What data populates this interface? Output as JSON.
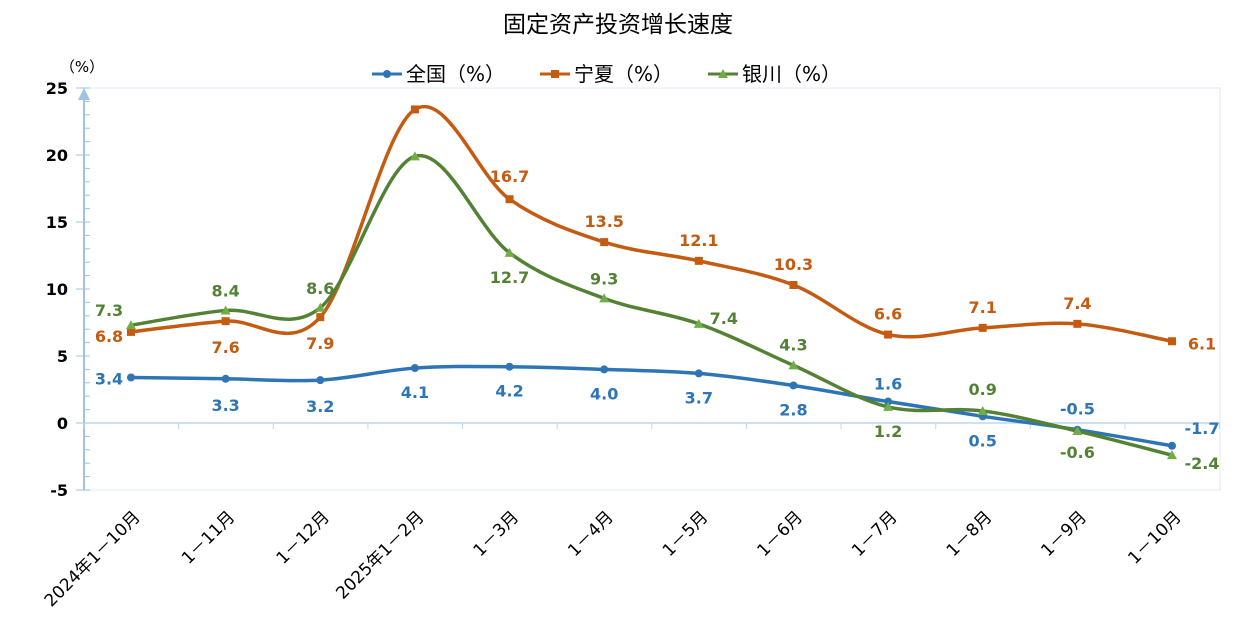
{
  "chart_data": {
    "type": "line",
    "title": "固定资产投资增长速度",
    "ylabel": "（%）",
    "ylim": [
      -5,
      25
    ],
    "yticks": [
      -5,
      0,
      5,
      10,
      15,
      20,
      25
    ],
    "grid": false,
    "legend_position": "top",
    "categories": [
      "2024年1－10月",
      "1－11月",
      "1－12月",
      "2025年1－2月",
      "1－3月",
      "1－4月",
      "1－5月",
      "1－6月",
      "1－7月",
      "1－8月",
      "1－9月",
      "1－10月"
    ],
    "series": [
      {
        "name": "全国（%）",
        "color": "#2E75B6",
        "marker": "circle",
        "values": [
          3.4,
          3.3,
          3.2,
          4.1,
          4.2,
          4.0,
          3.7,
          2.8,
          1.6,
          0.5,
          -0.5,
          -1.7
        ],
        "labels": [
          "3.4",
          "3.3",
          "3.2",
          "4.1",
          "4.2",
          "4.0",
          "3.7",
          "2.8",
          "1.6",
          "0.5",
          "-0.5",
          "-1.7"
        ]
      },
      {
        "name": "宁夏（%）",
        "color": "#C55A11",
        "marker": "square",
        "values": [
          6.8,
          7.6,
          7.9,
          23.4,
          16.7,
          13.5,
          12.1,
          10.3,
          6.6,
          7.1,
          7.4,
          6.1
        ],
        "labels": [
          "6.8",
          "7.6",
          "7.9",
          "",
          "16.7",
          "13.5",
          "12.1",
          "10.3",
          "6.6",
          "7.1",
          "7.4",
          "6.1"
        ]
      },
      {
        "name": "银川（%）",
        "color": "#548235",
        "marker": "triangle",
        "values": [
          7.3,
          8.4,
          8.6,
          19.9,
          12.7,
          9.3,
          7.4,
          4.3,
          1.2,
          0.9,
          -0.6,
          -2.4
        ],
        "labels": [
          "7.3",
          "8.4",
          "8.6",
          "",
          "12.7",
          "9.3",
          "7.4",
          "4.3",
          "1.2",
          "0.9",
          "-0.6",
          "-2.4"
        ]
      }
    ]
  }
}
